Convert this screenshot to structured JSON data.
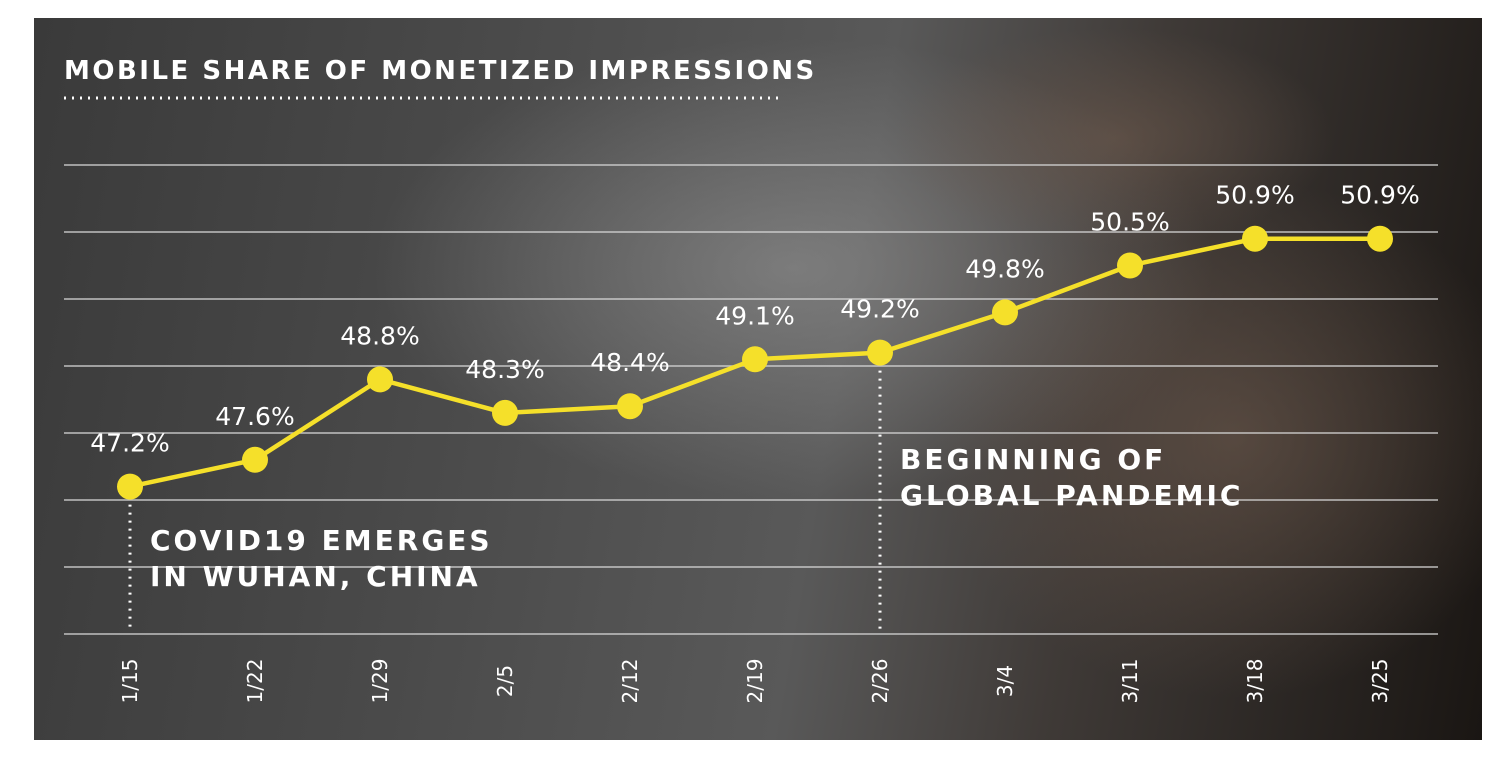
{
  "chart_data": {
    "type": "line",
    "title": "MOBILE SHARE OF MONETIZED IMPRESSIONS",
    "categories": [
      "1/15",
      "1/22",
      "1/29",
      "2/5",
      "2/12",
      "2/19",
      "2/26",
      "3/4",
      "3/11",
      "3/18",
      "3/25"
    ],
    "series": [
      {
        "values": [
          47.2,
          47.6,
          48.8,
          48.3,
          48.4,
          49.1,
          49.2,
          49.8,
          50.5,
          50.9,
          50.9
        ],
        "labels": [
          "47.2%",
          "47.6%",
          "48.8%",
          "48.3%",
          "48.4%",
          "49.1%",
          "49.2%",
          "49.8%",
          "50.5%",
          "50.9%",
          "50.9%"
        ]
      }
    ],
    "ylim": [
      45.0,
      52.0
    ],
    "grid": true,
    "line_color": "#f5e02a",
    "gridline_color": "#d8d8d8",
    "annotations": [
      {
        "category": "1/15",
        "lines": [
          "COVID19 EMERGES",
          "IN WUHAN, CHINA"
        ]
      },
      {
        "category": "2/26",
        "lines": [
          "BEGINNING OF",
          "GLOBAL PANDEMIC"
        ]
      }
    ]
  }
}
